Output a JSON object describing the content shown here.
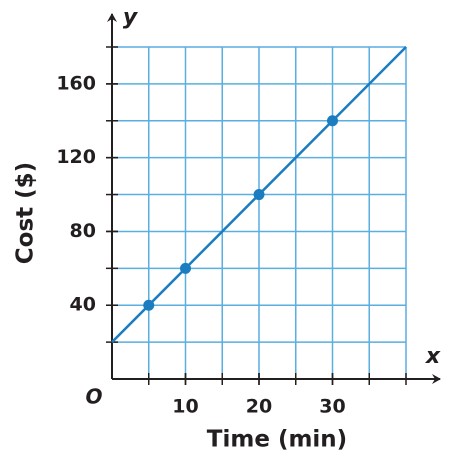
{
  "chart_data": {
    "type": "line",
    "xlabel": "Time (min)",
    "ylabel": "Cost ($)",
    "x_axis_name": "x",
    "y_axis_name": "y",
    "origin_label": "O",
    "xlim": [
      0,
      40
    ],
    "ylim": [
      0,
      180
    ],
    "xticks": [
      10,
      20,
      30
    ],
    "yticks": [
      40,
      80,
      120,
      160
    ],
    "xgrid": [
      5,
      10,
      15,
      20,
      25,
      30,
      35,
      40
    ],
    "ygrid": [
      20,
      40,
      60,
      80,
      100,
      120,
      140,
      160,
      180
    ],
    "grid": true,
    "grid_color": "#5aaee0",
    "color": "#1b7dc0",
    "line": {
      "x": [
        0,
        40
      ],
      "values": [
        20,
        180
      ]
    },
    "points": {
      "x": [
        5,
        10,
        20,
        30
      ],
      "values": [
        40,
        60,
        100,
        140
      ]
    }
  }
}
